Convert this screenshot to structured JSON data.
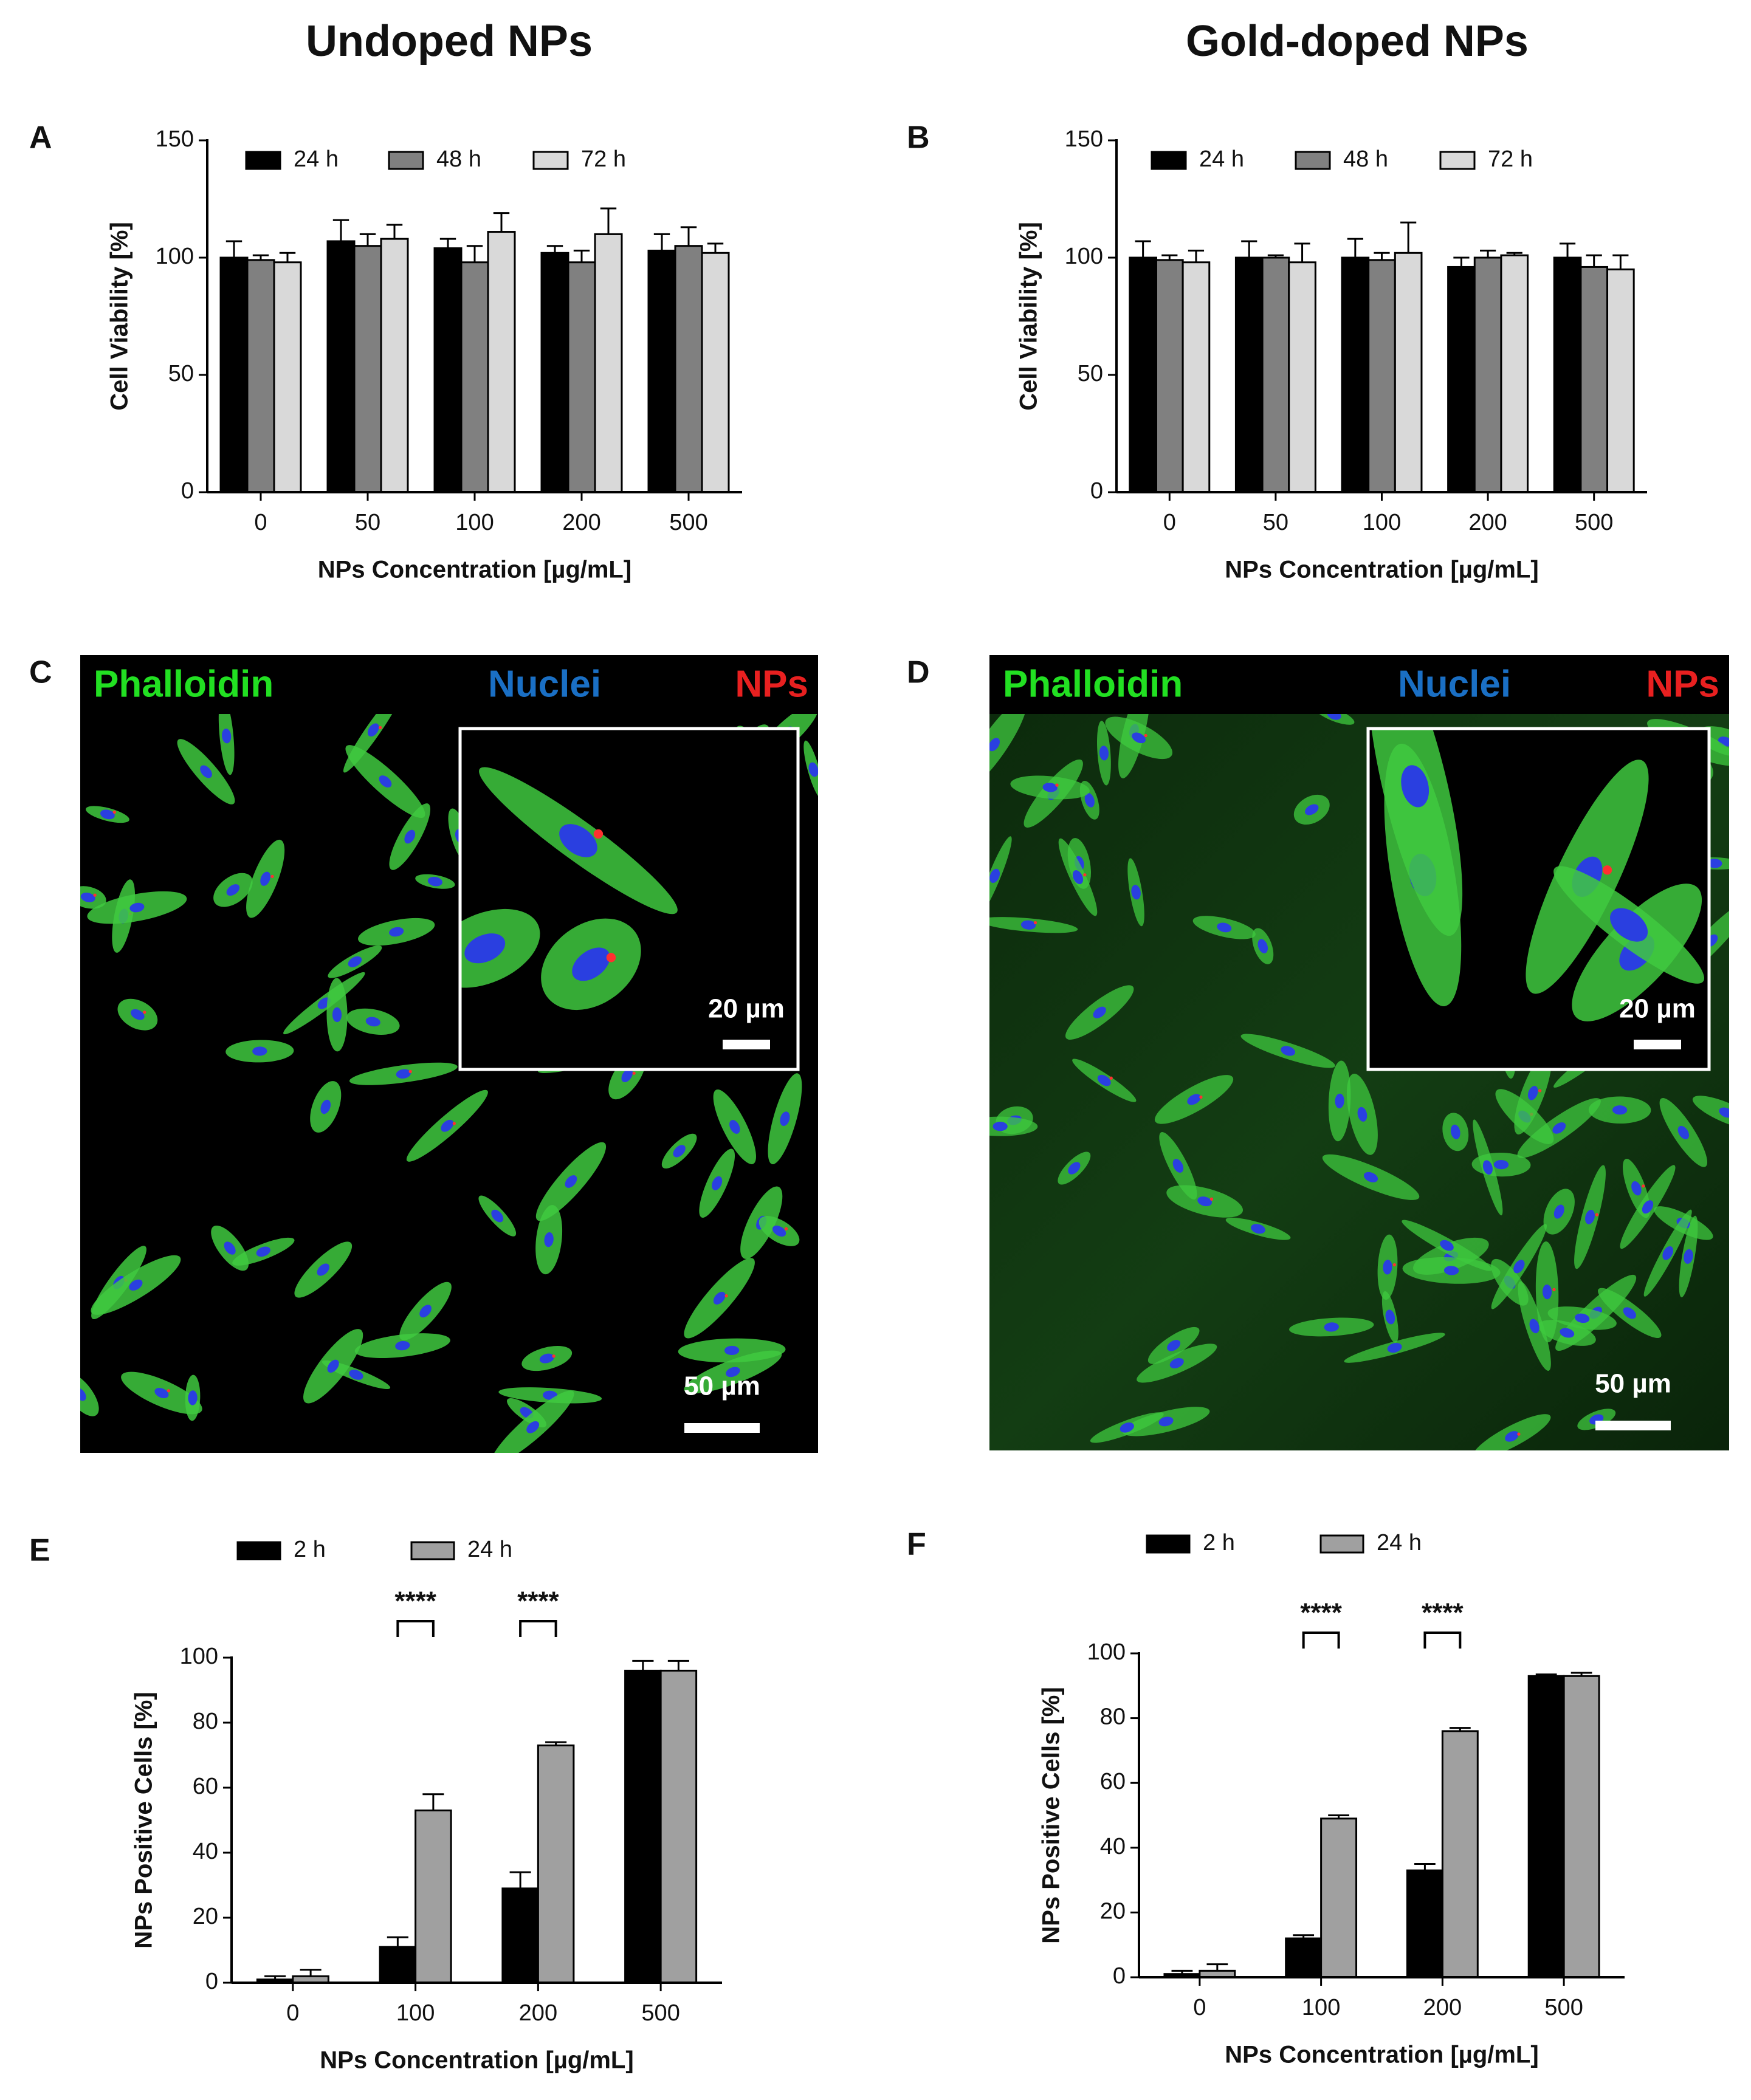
{
  "column_titles": [
    "Undoped NPs",
    "Gold-doped NPs"
  ],
  "panel_labels": [
    "A",
    "B",
    "C",
    "D",
    "E",
    "F"
  ],
  "chart_data": [
    {
      "type": "bar",
      "x_label": "NPs Concentration [µg/mL]",
      "y_label": "Cell Viability [%]",
      "categories": [
        "0",
        "50",
        "100",
        "200",
        "500"
      ],
      "series": [
        {
          "name": "24 h",
          "color": "#000000",
          "values": [
            100,
            107,
            104,
            102,
            103
          ],
          "errors": [
            7,
            9,
            4,
            3,
            7
          ]
        },
        {
          "name": "48 h",
          "color": "#808080",
          "values": [
            99,
            105,
            98,
            98,
            105
          ],
          "errors": [
            2,
            5,
            7,
            5,
            8
          ]
        },
        {
          "name": "72 h",
          "color": "#d9d9d9",
          "values": [
            98,
            108,
            111,
            110,
            102
          ],
          "errors": [
            4,
            6,
            8,
            11,
            4
          ]
        }
      ],
      "ylim": [
        0,
        150
      ],
      "yticks": [
        0,
        50,
        100,
        150
      ],
      "legend": "top"
    },
    {
      "type": "bar",
      "x_label": "NPs Concentration [µg/mL]",
      "y_label": "Cell Viability [%]",
      "categories": [
        "0",
        "50",
        "100",
        "200",
        "500"
      ],
      "series": [
        {
          "name": "24 h",
          "color": "#000000",
          "values": [
            100,
            100,
            100,
            96,
            100
          ],
          "errors": [
            7,
            7,
            8,
            4,
            6
          ]
        },
        {
          "name": "48 h",
          "color": "#808080",
          "values": [
            99,
            100,
            99,
            100,
            96
          ],
          "errors": [
            2,
            1,
            3,
            3,
            5
          ]
        },
        {
          "name": "72 h",
          "color": "#d9d9d9",
          "values": [
            98,
            98,
            102,
            101,
            95
          ],
          "errors": [
            5,
            8,
            13,
            1,
            6
          ]
        }
      ],
      "ylim": [
        0,
        150
      ],
      "yticks": [
        0,
        50,
        100,
        150
      ],
      "legend": "top"
    },
    {
      "type": "bar",
      "x_label": "NPs Concentration [µg/mL]",
      "y_label": "NPs Positive Cells [%]",
      "categories": [
        "0",
        "100",
        "200",
        "500"
      ],
      "series": [
        {
          "name": "2 h",
          "color": "#000000",
          "values": [
            1,
            11,
            29,
            96
          ],
          "errors": [
            1,
            3,
            5,
            3
          ]
        },
        {
          "name": "24 h",
          "color": "#a0a0a0",
          "values": [
            2,
            53,
            73,
            96
          ],
          "errors": [
            2,
            5,
            1,
            3
          ]
        }
      ],
      "significance": [
        {
          "category": "100",
          "label": "****"
        },
        {
          "category": "200",
          "label": "****"
        }
      ],
      "ylim": [
        0,
        100
      ],
      "yticks": [
        0,
        20,
        40,
        60,
        80,
        100
      ],
      "legend": "top"
    },
    {
      "type": "bar",
      "x_label": "NPs Concentration [µg/mL]",
      "y_label": "NPs Positive Cells [%]",
      "categories": [
        "0",
        "100",
        "200",
        "500"
      ],
      "series": [
        {
          "name": "2 h",
          "color": "#000000",
          "values": [
            1,
            12,
            33,
            93
          ],
          "errors": [
            1,
            1,
            2,
            0.5
          ]
        },
        {
          "name": "24 h",
          "color": "#a0a0a0",
          "values": [
            2,
            49,
            76,
            93
          ],
          "errors": [
            2,
            1,
            1,
            1
          ]
        }
      ],
      "significance": [
        {
          "category": "100",
          "label": "****"
        },
        {
          "category": "200",
          "label": "****"
        }
      ],
      "ylim": [
        0,
        100
      ],
      "yticks": [
        0,
        20,
        40,
        60,
        80,
        100
      ],
      "legend": "top"
    }
  ],
  "images": [
    {
      "channels": [
        {
          "label": "Phalloidin",
          "color": "#22e022"
        },
        {
          "label": "Nuclei",
          "color": "#1a6fc4"
        },
        {
          "label": "NPs",
          "color": "#e82020"
        }
      ],
      "scale_bar": "50 µm",
      "inset_scale_bar": "20 µm"
    },
    {
      "channels": [
        {
          "label": "Phalloidin",
          "color": "#22e022"
        },
        {
          "label": "Nuclei",
          "color": "#1a6fc4"
        },
        {
          "label": "NPs",
          "color": "#e82020"
        }
      ],
      "scale_bar": "50 µm",
      "inset_scale_bar": "20 µm"
    }
  ]
}
